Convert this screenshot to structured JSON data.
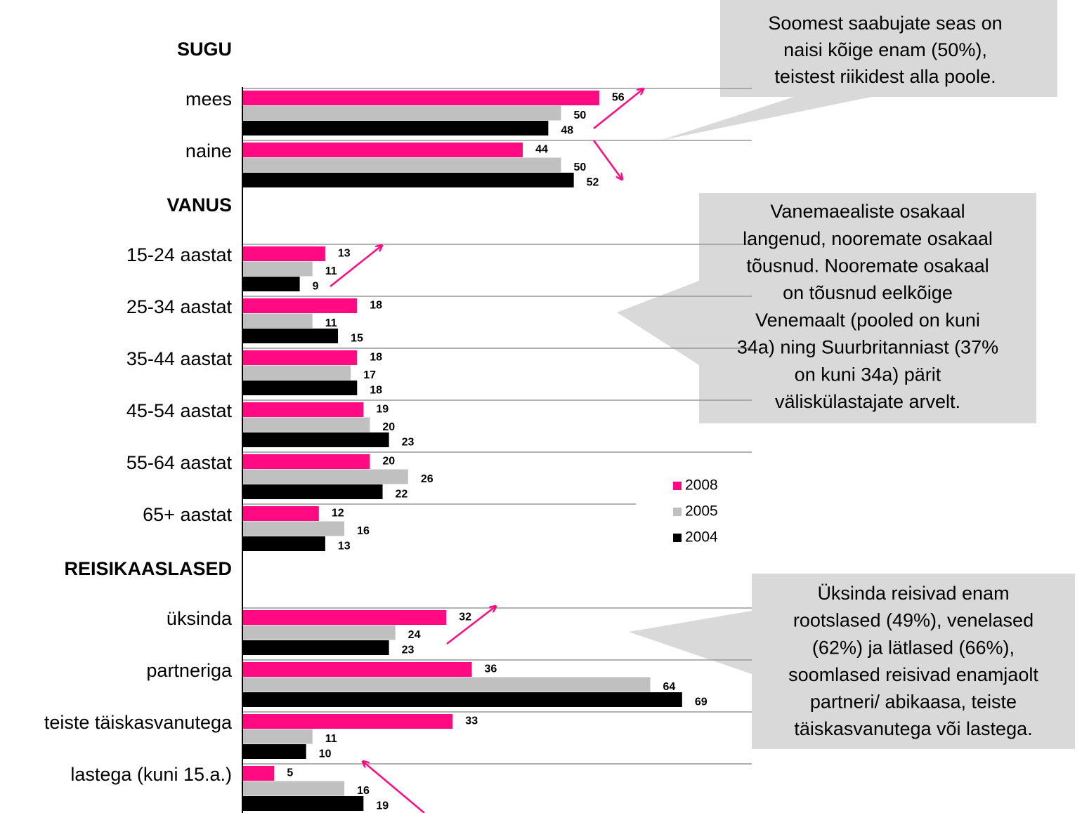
{
  "chart_data": {
    "type": "bar",
    "orientation": "horizontal",
    "groups": [
      {
        "title": "SUGU",
        "categories": [
          "mees",
          "naine"
        ]
      },
      {
        "title": "VANUS",
        "categories": [
          "15-24 aastat",
          "25-34 aastat",
          "35-44 aastat",
          "45-54 aastat",
          "55-64 aastat",
          "65+ aastat"
        ]
      },
      {
        "title": "REISIKAASLASED",
        "categories": [
          "üksinda",
          "partneriga",
          "teiste täiskasvanutega",
          "lastega (kuni 15.a.)"
        ]
      }
    ],
    "series": [
      {
        "name": "2008",
        "color": "#ff0a82",
        "values": [
          56,
          44,
          13,
          18,
          18,
          19,
          20,
          12,
          32,
          36,
          33,
          5
        ]
      },
      {
        "name": "2005",
        "color": "#c0c0c0",
        "values": [
          50,
          50,
          11,
          11,
          17,
          20,
          26,
          16,
          24,
          64,
          11,
          16
        ]
      },
      {
        "name": "2004",
        "color": "#000000",
        "values": [
          48,
          52,
          9,
          15,
          18,
          23,
          22,
          13,
          23,
          69,
          10,
          19
        ]
      }
    ],
    "xlim": [
      0,
      100
    ],
    "legend": "right",
    "callouts": [
      {
        "lines": [
          "Soomest saabujate seas on",
          "naisi kõige enam (50%),",
          "teistest riikidest alla poole."
        ]
      },
      {
        "lines": [
          "Vanemaealiste osakaal",
          "langenud, nooremate osakaal",
          "tõusnud. Nooremate osakaal",
          "on tõusnud eelkõige",
          "Venemaalt (pooled on kuni",
          "34a) ning Suurbritanniast (37%",
          "on kuni 34a) pärit",
          "väliskülastajate arvelt."
        ]
      },
      {
        "lines": [
          "Üksinda reisivad enam",
          "rootslased (49%), venelased",
          "(62%) ja lätlased (66%),",
          "soomlased reisivad enamjaolt",
          "partneri/ abikaasa, teiste",
          "täiskasvanutega või lastega."
        ]
      }
    ]
  }
}
